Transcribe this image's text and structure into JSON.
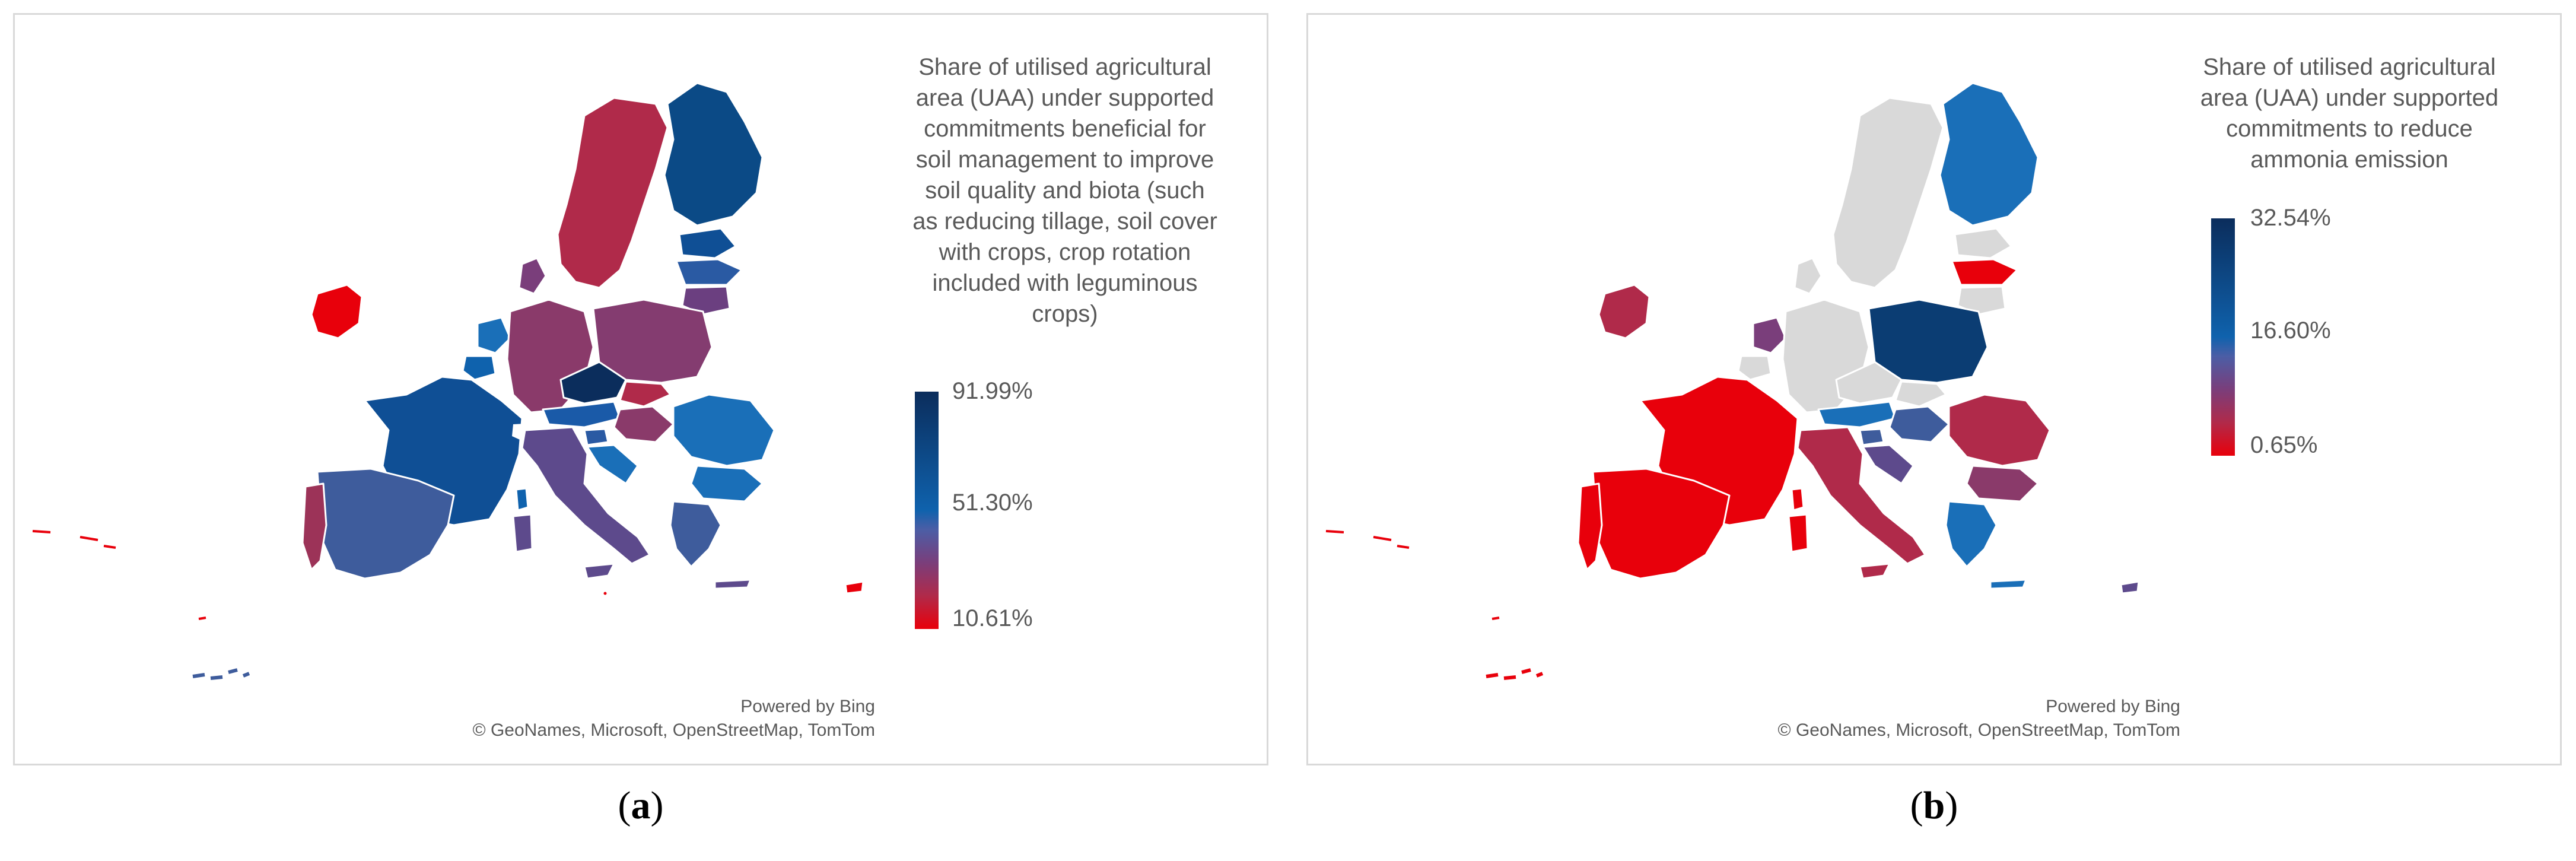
{
  "panels": [
    {
      "id": "a",
      "legend_title": "Share of utilised agricultural\narea (UAA) under supported\ncommitments beneficial for\nsoil management to improve\nsoil quality and biota (such\nas reducing tillage, soil cover\nwith crops, crop rotation\nincluded with leguminous\ncrops)",
      "scale_max": "91.99%",
      "scale_mid": "51.30%",
      "scale_min": "10.61%",
      "attribution_1": "Powered by Bing",
      "attribution_2": "© GeoNames, Microsoft, OpenStreetMap, TomTom",
      "caption_letter": "a",
      "colors": {
        "high": "#0b2d5c",
        "mid": "#0f62ad",
        "low": "#e8000b"
      }
    },
    {
      "id": "b",
      "legend_title": "Share of utilised agricultural\narea (UAA) under supported\ncommitments to reduce\nammonia emission",
      "scale_max": "32.54%",
      "scale_mid": "16.60%",
      "scale_min": "0.65%",
      "attribution_1": "Powered by Bing",
      "attribution_2": "© GeoNames, Microsoft, OpenStreetMap, TomTom",
      "caption_letter": "b",
      "colors": {
        "high": "#0b2d5c",
        "mid": "#0f62ad",
        "low": "#e8000b",
        "no_data": "#d9d9d9"
      }
    }
  ]
}
